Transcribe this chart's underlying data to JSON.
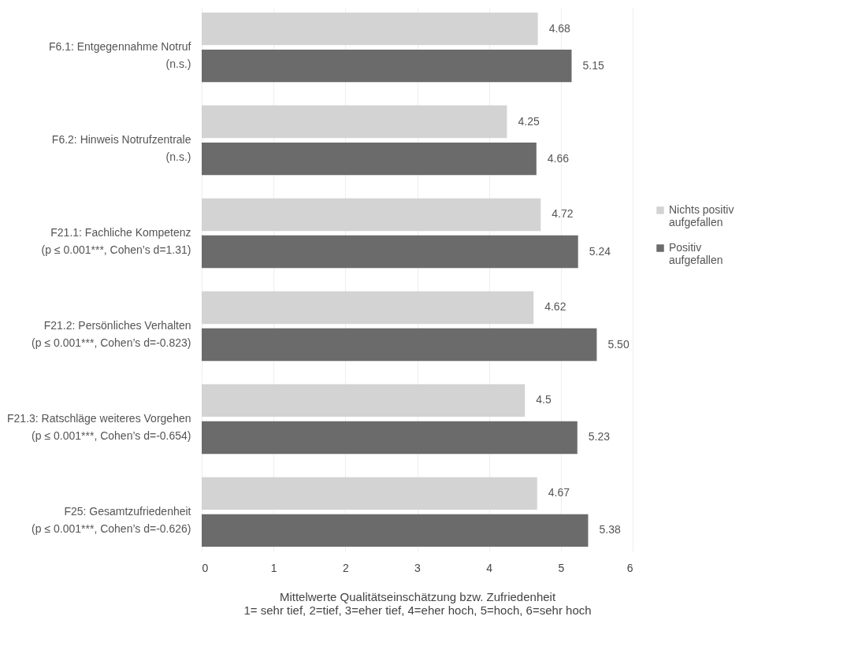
{
  "chart_data": {
    "type": "bar",
    "orientation": "horizontal",
    "categories": [
      "F6.1: Entgegennahme Notruf\n(n.s.)",
      "F6.2: Hinweis Notrufzentrale\n(n.s.)",
      "F21.1: Fachliche Kompetenz\n(p ≤ 0.001***, Cohen’s d=1.31)",
      "F21.2: Persönliches Verhalten\n(p ≤ 0.001***,  Cohen’s d=-0.823)",
      "F21.3: Ratschläge weiteres Vorgehen\n(p ≤ 0.001***,  Cohen’s d=-0.654)",
      "F25: Gesamtzufriedenheit\n(p ≤ 0.001***,  Cohen’s d=-0.626)"
    ],
    "series": [
      {
        "name": "Nichts positiv\naufgefallen",
        "color": "#d3d3d3",
        "values": [
          4.68,
          4.25,
          4.72,
          4.62,
          4.5,
          4.67
        ],
        "value_labels": [
          "4.68",
          "4.25",
          "4.72",
          "4.62",
          "4.5",
          "4.67"
        ]
      },
      {
        "name": "Positiv\naufgefallen",
        "color": "#6b6b6b",
        "values": [
          5.15,
          4.66,
          5.24,
          5.5,
          5.23,
          5.38
        ],
        "value_labels": [
          "5.15",
          "4.66",
          "5.24",
          "5.50",
          "5.23",
          "5.38"
        ]
      }
    ],
    "xlim": [
      0,
      6
    ],
    "xticks": [
      0,
      1,
      2,
      3,
      4,
      5,
      6
    ],
    "xlabel": "Mittelwerte Qualitätseinschätzung bzw. Zufriedenheit\n1= sehr tief, 2=tief, 3=eher tief, 4=eher hoch, 5=hoch, 6=sehr hoch",
    "grid": "x",
    "legend": "right"
  }
}
